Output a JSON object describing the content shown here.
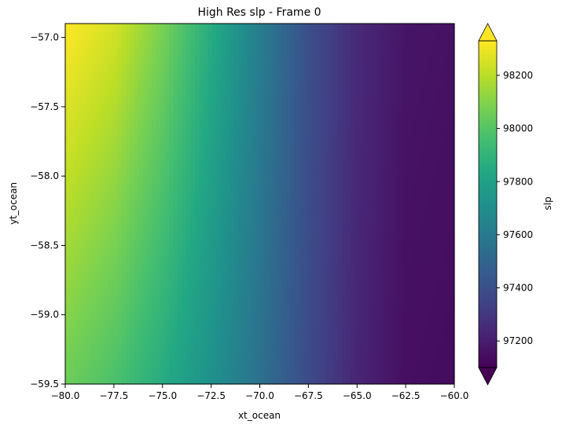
{
  "chart_data": {
    "type": "heatmap",
    "title": "High Res slp - Frame 0",
    "xlabel": "xt_ocean",
    "ylabel": "yt_ocean",
    "xlim": [
      -80.0,
      -60.0
    ],
    "ylim": [
      -59.5,
      -56.9
    ],
    "x_ticks": [
      -80.0,
      -77.5,
      -75.0,
      -72.5,
      -70.0,
      -67.5,
      -65.0,
      -62.5,
      -60.0
    ],
    "x_tick_labels": [
      "−80.0",
      "−77.5",
      "−75.0",
      "−72.5",
      "−70.0",
      "−67.5",
      "−65.0",
      "−62.5",
      "−60.0"
    ],
    "y_ticks": [
      -57.0,
      -57.5,
      -58.0,
      -58.5,
      -59.0,
      -59.5
    ],
    "y_tick_labels": [
      "−57.0",
      "−57.5",
      "−58.0",
      "−58.5",
      "−59.0",
      "−59.5"
    ],
    "colorbar": {
      "label": "slp",
      "range": [
        97100,
        98330
      ],
      "ticks": [
        97200,
        97400,
        97600,
        97800,
        98000,
        98200
      ],
      "tick_labels": [
        "97200",
        "97400",
        "97600",
        "97800",
        "98000",
        "98200"
      ],
      "extend": "both",
      "colormap": "viridis"
    },
    "field_profile": {
      "description_values_at_bottom_row": {
        "x": [
          -80.0,
          -77.5,
          -75.0,
          -72.5,
          -70.0,
          -67.5,
          -65.0,
          -62.5,
          -60.0
        ],
        "slp": [
          98060,
          97980,
          97860,
          97720,
          97560,
          97380,
          97230,
          97150,
          97140
        ]
      },
      "description_values_at_top_row": {
        "x": [
          -80.0,
          -77.5,
          -75.0,
          -72.5,
          -70.0,
          -67.5,
          -65.0,
          -62.5,
          -60.0
        ],
        "slp": [
          98330,
          98250,
          98080,
          97860,
          97620,
          97400,
          97250,
          97170,
          97160
        ]
      }
    },
    "grid": false,
    "legend": "none"
  }
}
